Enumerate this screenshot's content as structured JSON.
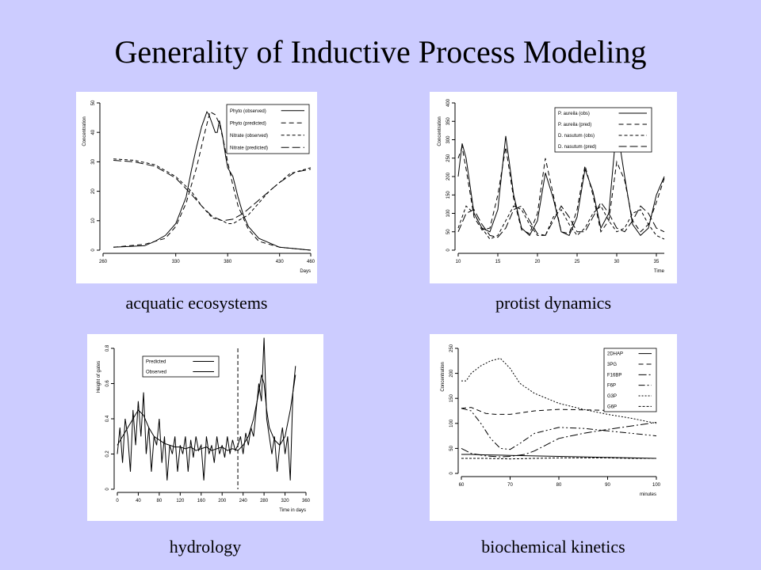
{
  "slide": {
    "title": "Generality of Inductive Process Modeling",
    "background": "#ccccff"
  },
  "chart_data": [
    {
      "id": "aquatic",
      "caption": "acquatic ecosystems",
      "type": "line",
      "xlabel": "Days",
      "ylabel": "Concentration",
      "xlim": [
        260,
        460
      ],
      "ylim": [
        0,
        50
      ],
      "xticks": [
        260,
        330,
        380,
        430,
        460
      ],
      "yticks": [
        0,
        10,
        20,
        30,
        40,
        50
      ],
      "legend_position": "top-right",
      "series": [
        {
          "name": "Phyto (observed)",
          "dash": "solid",
          "x": [
            270,
            300,
            310,
            320,
            330,
            340,
            345,
            350,
            355,
            360,
            362,
            365,
            368,
            370,
            372,
            375,
            378,
            380,
            385,
            390,
            395,
            400,
            410,
            430,
            460
          ],
          "y": [
            1,
            1.5,
            3,
            5,
            9,
            18,
            27,
            35,
            42,
            47,
            46,
            43,
            40,
            40,
            44,
            39,
            32,
            28,
            25,
            18,
            12,
            8,
            4,
            1,
            0
          ]
        },
        {
          "name": "Phyto (predicted)",
          "dash": "6,4",
          "x": [
            270,
            300,
            320,
            330,
            340,
            350,
            358,
            363,
            368,
            372,
            376,
            380,
            385,
            390,
            400,
            410,
            430,
            460
          ],
          "y": [
            1,
            2,
            4,
            8,
            16,
            28,
            40,
            47,
            46,
            43,
            37,
            30,
            22,
            15,
            7,
            3,
            1,
            0
          ]
        },
        {
          "name": "Nitrate (observed)",
          "dash": "4,3",
          "x": [
            270,
            290,
            310,
            330,
            345,
            355,
            365,
            375,
            380,
            385,
            390,
            400,
            420,
            440,
            460
          ],
          "y": [
            31,
            30.5,
            29,
            25,
            20,
            15,
            11,
            10,
            9,
            9,
            10,
            12,
            20,
            26,
            28
          ]
        },
        {
          "name": "Nitrate (predicted)",
          "dash": "10,4",
          "x": [
            270,
            290,
            310,
            330,
            345,
            355,
            365,
            375,
            385,
            395,
            410,
            430,
            445,
            460
          ],
          "y": [
            30.5,
            30,
            28.5,
            24.5,
            19,
            15,
            11.5,
            10,
            10.5,
            12.5,
            17,
            23,
            26.5,
            27.5
          ]
        }
      ]
    },
    {
      "id": "protist",
      "caption": "protist dynamics",
      "type": "line",
      "xlabel": "Time",
      "ylabel": "Concentration",
      "xlim": [
        10,
        36
      ],
      "ylim": [
        0,
        400
      ],
      "xticks": [
        10,
        15,
        20,
        25,
        30,
        35
      ],
      "yticks": [
        0,
        50,
        100,
        150,
        200,
        250,
        300,
        350,
        400
      ],
      "legend_position": "top-right",
      "series": [
        {
          "name": "P. aureila (obs)",
          "dash": "solid",
          "x": [
            10,
            10.5,
            11,
            12,
            13,
            14,
            15,
            16,
            17,
            18,
            19,
            20,
            21,
            22,
            23,
            24,
            25,
            26,
            27,
            28,
            29,
            30,
            31,
            32,
            33,
            34,
            35,
            36
          ],
          "y": [
            200,
            290,
            250,
            100,
            60,
            50,
            110,
            310,
            150,
            60,
            40,
            80,
            210,
            140,
            50,
            40,
            90,
            220,
            160,
            60,
            100,
            340,
            200,
            70,
            40,
            60,
            150,
            200
          ]
        },
        {
          "name": "P. aureila (pred)",
          "dash": "6,4",
          "x": [
            10,
            10.5,
            11,
            12,
            13,
            14,
            15,
            16,
            17,
            18,
            19,
            20,
            21,
            22,
            23,
            24,
            25,
            26,
            27,
            28,
            29,
            30,
            31,
            32,
            33,
            34,
            35,
            36
          ],
          "y": [
            250,
            280,
            220,
            90,
            55,
            60,
            150,
            280,
            140,
            55,
            45,
            100,
            250,
            150,
            50,
            45,
            110,
            230,
            150,
            50,
            80,
            240,
            190,
            80,
            50,
            70,
            130,
            195
          ]
        },
        {
          "name": "D. nasutum (obs)",
          "dash": "4,3",
          "x": [
            10,
            11,
            12,
            13,
            14,
            15,
            16,
            17,
            18,
            19,
            20,
            21,
            22,
            23,
            24,
            25,
            26,
            27,
            28,
            29,
            30,
            31,
            32,
            33,
            34,
            35,
            36
          ],
          "y": [
            60,
            120,
            100,
            60,
            30,
            40,
            80,
            120,
            110,
            70,
            40,
            40,
            90,
            110,
            70,
            40,
            60,
            100,
            120,
            80,
            50,
            60,
            100,
            110,
            70,
            40,
            30
          ]
        },
        {
          "name": "D. nasutum (pred)",
          "dash": "10,4",
          "x": [
            10,
            11,
            12,
            13,
            14,
            15,
            16,
            17,
            18,
            19,
            20,
            21,
            22,
            23,
            24,
            25,
            26,
            27,
            28,
            29,
            30,
            31,
            32,
            33,
            34,
            35,
            36
          ],
          "y": [
            50,
            100,
            110,
            70,
            40,
            35,
            60,
            110,
            120,
            80,
            45,
            40,
            80,
            120,
            90,
            50,
            50,
            90,
            130,
            100,
            60,
            50,
            80,
            120,
            100,
            60,
            50
          ]
        }
      ]
    },
    {
      "id": "hydrology",
      "caption": "hydrology",
      "type": "line",
      "xlabel": "Time in days",
      "ylabel": "Height of gates",
      "xlim": [
        0,
        360
      ],
      "ylim": [
        0,
        0.8
      ],
      "xticks": [
        0,
        40,
        80,
        120,
        160,
        200,
        240,
        280,
        320,
        360
      ],
      "yticks": [
        0,
        0.2,
        0.4,
        0.6,
        0.8
      ],
      "legend_position": "top-left",
      "vline": 230,
      "series": [
        {
          "name": "Predicted",
          "dash": "solid",
          "x": [
            0,
            10,
            20,
            30,
            40,
            50,
            60,
            70,
            80,
            90,
            100,
            110,
            120,
            130,
            140,
            150,
            160,
            170,
            180,
            190,
            200,
            210,
            220,
            230,
            240,
            250,
            260,
            270,
            275,
            280,
            285,
            290,
            300,
            310,
            320,
            330,
            340
          ],
          "y": [
            0.25,
            0.3,
            0.35,
            0.4,
            0.45,
            0.42,
            0.35,
            0.3,
            0.28,
            0.26,
            0.25,
            0.24,
            0.24,
            0.23,
            0.24,
            0.22,
            0.23,
            0.24,
            0.22,
            0.23,
            0.24,
            0.22,
            0.23,
            0.22,
            0.25,
            0.3,
            0.4,
            0.55,
            0.65,
            0.6,
            0.45,
            0.35,
            0.28,
            0.25,
            0.3,
            0.45,
            0.65
          ]
        },
        {
          "name": "Observed",
          "dash": "solid",
          "x": [
            0,
            5,
            10,
            15,
            20,
            25,
            30,
            35,
            40,
            45,
            50,
            55,
            60,
            65,
            70,
            75,
            80,
            85,
            90,
            95,
            100,
            105,
            110,
            115,
            120,
            125,
            130,
            135,
            140,
            145,
            150,
            155,
            160,
            165,
            170,
            175,
            180,
            185,
            190,
            195,
            200,
            205,
            210,
            215,
            220,
            225,
            230,
            235,
            240,
            245,
            250,
            255,
            260,
            265,
            270,
            275,
            280,
            285,
            290,
            295,
            300,
            305,
            310,
            315,
            320,
            325,
            330,
            335,
            340
          ],
          "y": [
            0.2,
            0.35,
            0.15,
            0.4,
            0.3,
            0.1,
            0.45,
            0.25,
            0.5,
            0.3,
            0.55,
            0.2,
            0.35,
            0.1,
            0.3,
            0.25,
            0.4,
            0.15,
            0.3,
            0.05,
            0.25,
            0.2,
            0.3,
            0.1,
            0.25,
            0.2,
            0.3,
            0.1,
            0.28,
            0.18,
            0.3,
            0.22,
            0.25,
            0.05,
            0.3,
            0.2,
            0.25,
            0.15,
            0.3,
            0.2,
            0.25,
            0.18,
            0.3,
            0.2,
            0.28,
            0.22,
            0.25,
            0.3,
            0.2,
            0.32,
            0.25,
            0.35,
            0.3,
            0.45,
            0.6,
            0.5,
            0.86,
            0.4,
            0.3,
            0.2,
            0.3,
            0.1,
            0.25,
            0.35,
            0.2,
            0.3,
            0.05,
            0.55,
            0.7
          ]
        }
      ]
    },
    {
      "id": "biochemical",
      "caption": "biochemical kinetics",
      "type": "line",
      "xlabel": "minutes",
      "ylabel": "Concentration",
      "xlim": [
        60,
        100
      ],
      "ylim": [
        0,
        250
      ],
      "xticks": [
        60,
        70,
        80,
        90,
        100
      ],
      "yticks": [
        0,
        50,
        100,
        150,
        200,
        250
      ],
      "legend_position": "top-right",
      "series": [
        {
          "name": "2DHAP",
          "dash": "solid",
          "x": [
            60,
            62,
            65,
            70,
            75,
            80,
            85,
            90,
            95,
            100
          ],
          "y": [
            38,
            38,
            37,
            36,
            35,
            34,
            33,
            32,
            31,
            30
          ]
        },
        {
          "name": "3PG",
          "dash": "6,4",
          "x": [
            60,
            62,
            65,
            67,
            70,
            75,
            80,
            85,
            90,
            95,
            100
          ],
          "y": [
            130,
            132,
            120,
            118,
            118,
            125,
            128,
            127,
            126,
            126,
            126
          ]
        },
        {
          "name": "F16BP",
          "dash": "10,3,2,3",
          "x": [
            60,
            62,
            65,
            68,
            70,
            73,
            75,
            80,
            85,
            90,
            95,
            100
          ],
          "y": [
            50,
            40,
            35,
            33,
            34,
            38,
            45,
            70,
            80,
            88,
            95,
            102
          ]
        },
        {
          "name": "F6P",
          "dash": "8,3,2,3,2,3",
          "x": [
            60,
            62,
            64,
            66,
            68,
            70,
            72,
            75,
            80,
            85,
            90,
            95,
            100
          ],
          "y": [
            130,
            125,
            100,
            70,
            50,
            48,
            60,
            80,
            92,
            90,
            85,
            80,
            75
          ]
        },
        {
          "name": "G3P",
          "dash": "2,2",
          "x": [
            60,
            61,
            62,
            64,
            66,
            68,
            70,
            72,
            75,
            80,
            85,
            90,
            95,
            100
          ],
          "y": [
            185,
            185,
            200,
            215,
            225,
            230,
            210,
            180,
            160,
            140,
            128,
            118,
            110,
            100
          ]
        },
        {
          "name": "G6P",
          "dash": "3,2",
          "x": [
            60,
            65,
            70,
            75,
            80,
            85,
            90,
            95,
            100
          ],
          "y": [
            30,
            30,
            29,
            30,
            31,
            31,
            31,
            30,
            30
          ]
        }
      ]
    }
  ]
}
